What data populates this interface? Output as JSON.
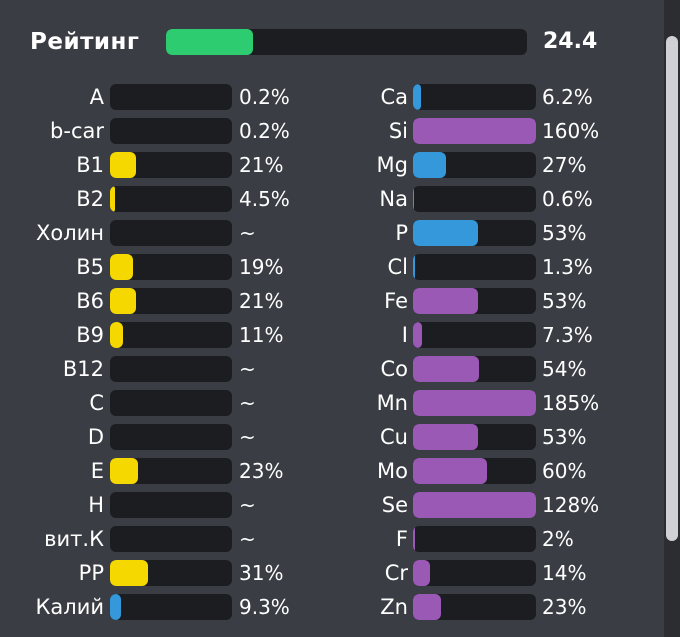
{
  "colors": {
    "green": "#2ecc71",
    "yellow": "#f4d800",
    "blue": "#3498db",
    "purple": "#9b59b6",
    "track": "#1c1d21"
  },
  "rating": {
    "label": "Рейтинг",
    "value": "24.4",
    "fill": 0.24,
    "color": "green"
  },
  "vitamins": [
    {
      "name": "A",
      "value": "0.2%",
      "fill": 0,
      "color": "yellow"
    },
    {
      "name": "b-car",
      "value": "0.2%",
      "fill": 0,
      "color": "yellow"
    },
    {
      "name": "B1",
      "value": "21%",
      "fill": 0.21,
      "color": "yellow"
    },
    {
      "name": "B2",
      "value": "4.5%",
      "fill": 0.045,
      "color": "yellow"
    },
    {
      "name": "Холин",
      "value": "~",
      "fill": 0,
      "color": "yellow"
    },
    {
      "name": "B5",
      "value": "19%",
      "fill": 0.19,
      "color": "yellow"
    },
    {
      "name": "B6",
      "value": "21%",
      "fill": 0.21,
      "color": "yellow"
    },
    {
      "name": "B9",
      "value": "11%",
      "fill": 0.11,
      "color": "yellow"
    },
    {
      "name": "B12",
      "value": "~",
      "fill": 0,
      "color": "yellow"
    },
    {
      "name": "C",
      "value": "~",
      "fill": 0,
      "color": "yellow"
    },
    {
      "name": "D",
      "value": "~",
      "fill": 0,
      "color": "yellow"
    },
    {
      "name": "E",
      "value": "23%",
      "fill": 0.23,
      "color": "yellow"
    },
    {
      "name": "H",
      "value": "~",
      "fill": 0,
      "color": "yellow"
    },
    {
      "name": "вит.К",
      "value": "~",
      "fill": 0,
      "color": "yellow"
    },
    {
      "name": "PP",
      "value": "31%",
      "fill": 0.31,
      "color": "yellow"
    },
    {
      "name": "Калий",
      "value": "9.3%",
      "fill": 0.093,
      "color": "blue"
    }
  ],
  "minerals": [
    {
      "name": "Ca",
      "value": "6.2%",
      "fill": 0.062,
      "color": "blue"
    },
    {
      "name": "Si",
      "value": "160%",
      "fill": 1,
      "color": "purple"
    },
    {
      "name": "Mg",
      "value": "27%",
      "fill": 0.27,
      "color": "blue"
    },
    {
      "name": "Na",
      "value": "0.6%",
      "fill": 0.006,
      "color": "blue"
    },
    {
      "name": "P",
      "value": "53%",
      "fill": 0.53,
      "color": "blue"
    },
    {
      "name": "Cl",
      "value": "1.3%",
      "fill": 0.013,
      "color": "blue"
    },
    {
      "name": "Fe",
      "value": "53%",
      "fill": 0.53,
      "color": "purple"
    },
    {
      "name": "I",
      "value": "7.3%",
      "fill": 0.073,
      "color": "purple"
    },
    {
      "name": "Co",
      "value": "54%",
      "fill": 0.54,
      "color": "purple"
    },
    {
      "name": "Mn",
      "value": "185%",
      "fill": 1,
      "color": "purple"
    },
    {
      "name": "Cu",
      "value": "53%",
      "fill": 0.53,
      "color": "purple"
    },
    {
      "name": "Mo",
      "value": "60%",
      "fill": 0.6,
      "color": "purple"
    },
    {
      "name": "Se",
      "value": "128%",
      "fill": 1,
      "color": "purple"
    },
    {
      "name": "F",
      "value": "2%",
      "fill": 0.02,
      "color": "purple"
    },
    {
      "name": "Cr",
      "value": "14%",
      "fill": 0.14,
      "color": "purple"
    },
    {
      "name": "Zn",
      "value": "23%",
      "fill": 0.23,
      "color": "purple"
    }
  ]
}
